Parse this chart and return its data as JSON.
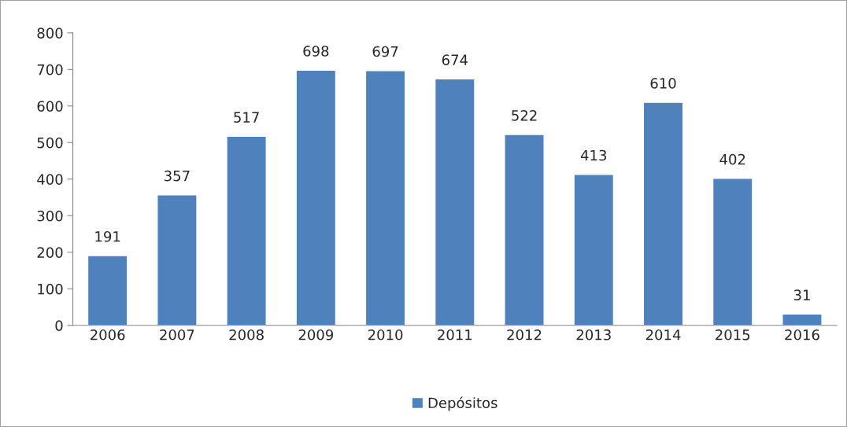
{
  "chart_data": {
    "type": "bar",
    "categories": [
      "2006",
      "2007",
      "2008",
      "2009",
      "2010",
      "2011",
      "2012",
      "2013",
      "2014",
      "2015",
      "2016"
    ],
    "series": [
      {
        "name": "Depósitos",
        "color": "#4f81bd",
        "values": [
          191,
          357,
          517,
          698,
          697,
          674,
          522,
          413,
          610,
          402,
          31
        ]
      }
    ],
    "ylim": [
      0,
      800
    ],
    "yticks": [
      0,
      100,
      200,
      300,
      400,
      500,
      600,
      700,
      800
    ],
    "data_labels": true,
    "legend": "bottom",
    "grid": false
  }
}
